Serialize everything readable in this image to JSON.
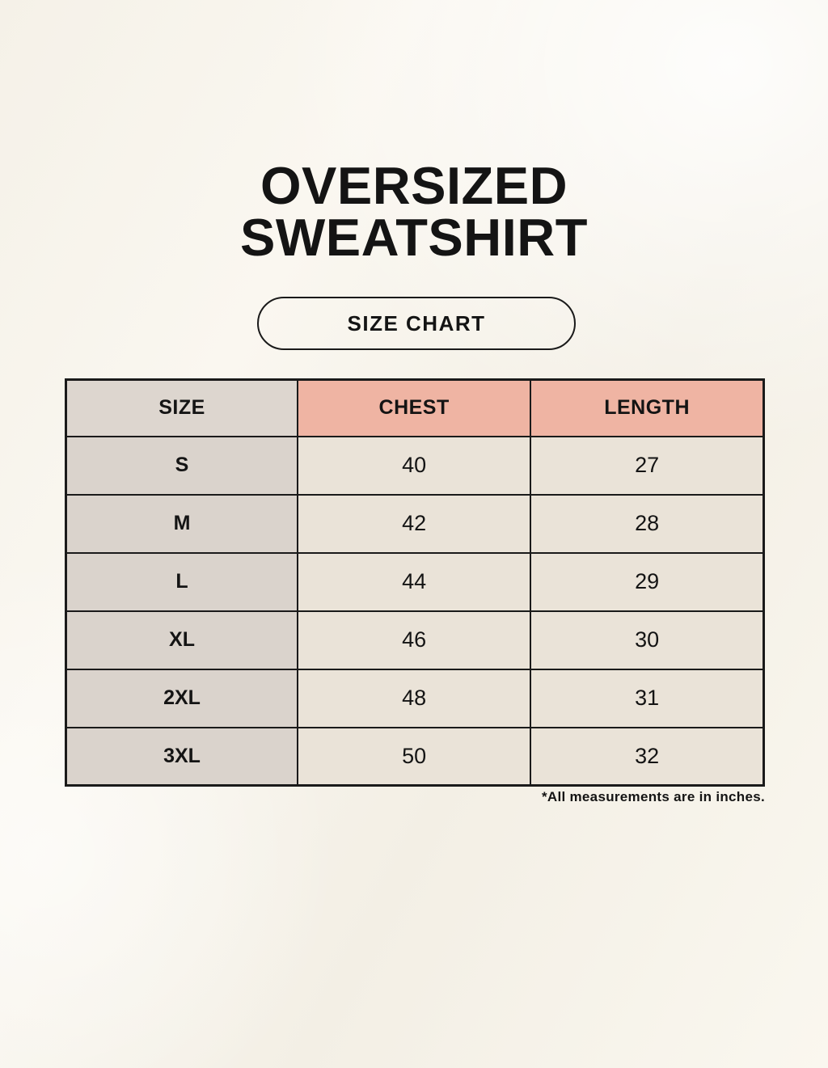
{
  "page": {
    "title_line1": "OVERSIZED",
    "title_line2": "SWEATSHIRT",
    "badge_label": "SIZE CHART",
    "footnote": "*All measurements are in inches."
  },
  "colors": {
    "background": "#f8f5ee",
    "text": "#141414",
    "border": "#1a1a1a",
    "header_size_bg": "#ddd6cf",
    "header_measure_bg": "#efb4a3",
    "row_label_bg": "#dad3cc",
    "row_value_bg": "#eae3d8"
  },
  "chart_data": {
    "type": "table",
    "title": "OVERSIZED SWEATSHIRT SIZE CHART",
    "units": "inches",
    "headers": [
      "SIZE",
      "CHEST",
      "LENGTH"
    ],
    "rows": [
      [
        "S",
        "40",
        "27"
      ],
      [
        "M",
        "42",
        "28"
      ],
      [
        "L",
        "44",
        "29"
      ],
      [
        "XL",
        "46",
        "30"
      ],
      [
        "2XL",
        "48",
        "31"
      ],
      [
        "3XL",
        "50",
        "32"
      ]
    ]
  }
}
